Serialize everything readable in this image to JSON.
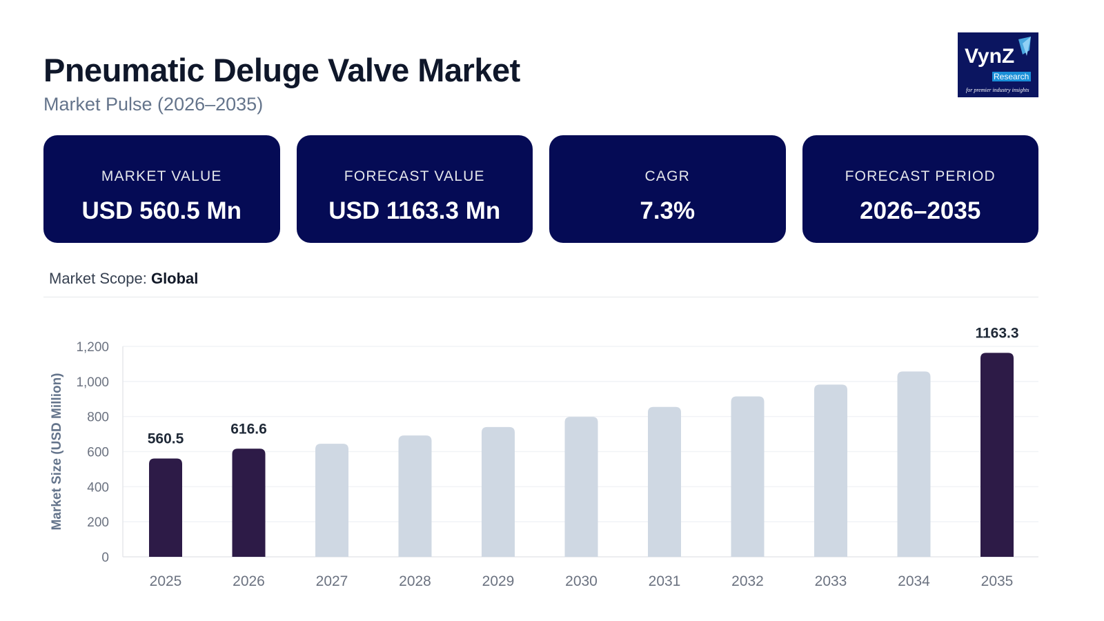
{
  "header": {
    "title": "Pneumatic Deluge Valve Market",
    "subtitle": "Market Pulse (2026–2035)"
  },
  "logo": {
    "text": "VynZ Research",
    "tagline": "for premier industry insights",
    "bg": "#0b1560"
  },
  "cards": [
    {
      "label": "MARKET VALUE",
      "value": "USD 560.5 Mn"
    },
    {
      "label": "FORECAST VALUE",
      "value": "USD 1163.3 Mn"
    },
    {
      "label": "CAGR",
      "value": "7.3%"
    },
    {
      "label": "FORECAST PERIOD",
      "value": "2026–2035"
    }
  ],
  "scope": {
    "label": "Market Scope: ",
    "value": "Global"
  },
  "chart_data": {
    "type": "bar",
    "title": "",
    "xlabel": "",
    "ylabel": "Market Size (USD Million)",
    "ylim": [
      0,
      1200
    ],
    "yticks": [
      0,
      200,
      400,
      600,
      800,
      1000,
      1200
    ],
    "ytick_labels": [
      "0",
      "200",
      "400",
      "600",
      "800",
      "1,000",
      "1,200"
    ],
    "grid": true,
    "categories": [
      "2025",
      "2026",
      "2027",
      "2028",
      "2029",
      "2030",
      "2031",
      "2032",
      "2033",
      "2034",
      "2035"
    ],
    "values": [
      560.5,
      616.6,
      645,
      692,
      740,
      798,
      855,
      915,
      982,
      1057,
      1163.3
    ],
    "data_labels": {
      "0": "560.5",
      "1": "616.6",
      "10": "1163.3"
    },
    "highlight_indices": [
      0,
      1,
      10
    ],
    "colors": {
      "highlight": "#2d1b47",
      "default": "#cfd8e3"
    }
  }
}
